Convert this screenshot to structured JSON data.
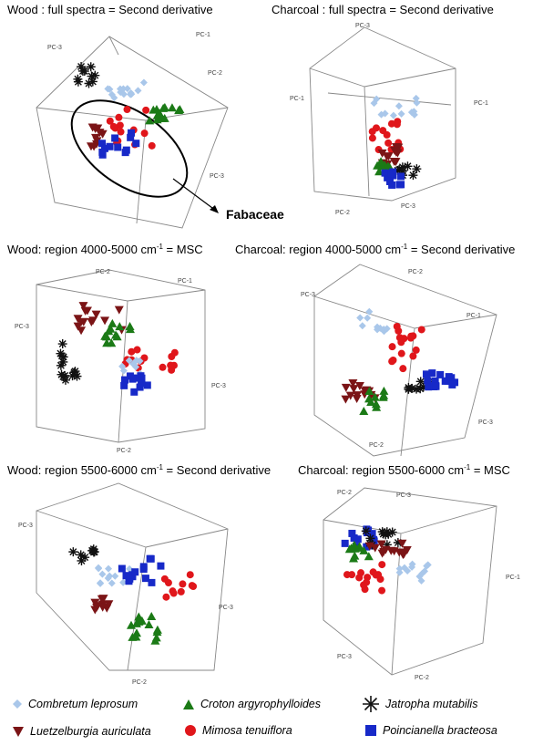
{
  "legend": [
    {
      "name": "Combretum leprosum",
      "marker": "diamond",
      "color": "#a9c7ea"
    },
    {
      "name": "Croton argyrophylloides",
      "marker": "triangle-up",
      "color": "#1b7a16"
    },
    {
      "name": "Jatropha mutabilis",
      "marker": "star",
      "color": "#111111"
    },
    {
      "name": "Luetzelburgia auriculata",
      "marker": "triangle-down",
      "color": "#7b1416"
    },
    {
      "name": "Mimosa tenuiflora",
      "marker": "circle",
      "color": "#e0161b"
    },
    {
      "name": "Poincianella bracteosa",
      "marker": "square",
      "color": "#1729c8"
    }
  ],
  "annotation": {
    "label": "Fabaceae"
  },
  "chart_data": [
    {
      "type": "scatter",
      "title": "Wood : full spectra = Second derivative",
      "axis_labels": [
        "PC-1",
        "PC-2",
        "PC-3"
      ],
      "grid": true
    },
    {
      "type": "scatter",
      "title": "Charcoal : full spectra = Second derivative",
      "axis_labels": [
        "PC-1",
        "PC-2",
        "PC-3"
      ],
      "grid": true
    },
    {
      "type": "scatter",
      "title": "Wood: region 4000-5000 cm",
      "title_sup": "-1",
      "title_rest": " = MSC",
      "axis_labels": [
        "PC-1",
        "PC-2",
        "PC-3"
      ],
      "grid": true
    },
    {
      "type": "scatter",
      "title": "Charcoal: region 4000-5000 cm",
      "title_sup": "-1",
      "title_rest": " = Second derivative",
      "axis_labels": [
        "PC-1",
        "PC-2",
        "PC-3"
      ],
      "grid": true
    },
    {
      "type": "scatter",
      "title": "Wood: region 5500-6000 cm",
      "title_sup": "-1",
      "title_rest": " = Second derivative",
      "axis_labels": [
        "PC-1",
        "PC-2",
        "PC-3"
      ],
      "grid": true
    },
    {
      "type": "scatter",
      "title": "Charcoal: region 5500-6000 cm",
      "title_sup": "-1",
      "title_rest": " = MSC",
      "axis_labels": [
        "PC-1",
        "PC-2",
        "PC-3"
      ],
      "grid": true
    }
  ]
}
